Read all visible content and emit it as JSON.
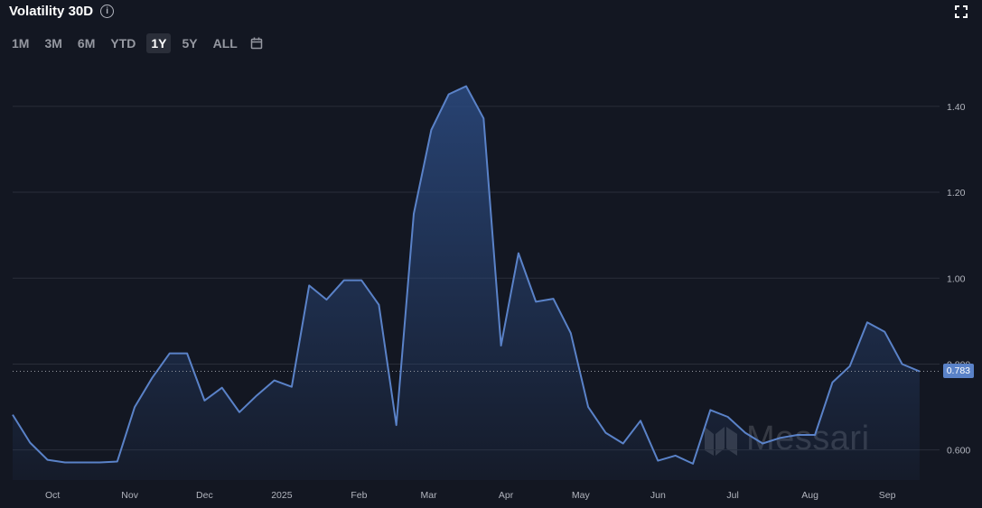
{
  "header": {
    "title": "Volatility 30D"
  },
  "ranges": [
    {
      "label": "1M",
      "active": false
    },
    {
      "label": "3M",
      "active": false
    },
    {
      "label": "6M",
      "active": false
    },
    {
      "label": "YTD",
      "active": false
    },
    {
      "label": "1Y",
      "active": true
    },
    {
      "label": "5Y",
      "active": false
    },
    {
      "label": "ALL",
      "active": false
    }
  ],
  "watermark": "Messari",
  "colors": {
    "background": "#131722",
    "line": "#5a82c8",
    "fill": "#2b4a80"
  },
  "chart_data": {
    "type": "area",
    "title": "Volatility 30D",
    "xlabel": "",
    "ylabel": "",
    "ylim": [
      0.53,
      1.49
    ],
    "grid": true,
    "y_ticks": [
      {
        "value": 0.6,
        "label": "0.600"
      },
      {
        "value": 0.8,
        "label": "0.800"
      },
      {
        "value": 1.0,
        "label": "1.00"
      },
      {
        "value": 1.2,
        "label": "1.20"
      },
      {
        "value": 1.4,
        "label": "1.40"
      }
    ],
    "x_start": "2024-09-15",
    "x_end": "2025-09-22",
    "x_ticks": [
      {
        "date": "2024-10-01",
        "label": "Oct"
      },
      {
        "date": "2024-11-01",
        "label": "Nov"
      },
      {
        "date": "2024-12-01",
        "label": "Dec"
      },
      {
        "date": "2025-01-01",
        "label": "2025"
      },
      {
        "date": "2025-02-01",
        "label": "Feb"
      },
      {
        "date": "2025-03-01",
        "label": "Mar"
      },
      {
        "date": "2025-04-01",
        "label": "Apr"
      },
      {
        "date": "2025-05-01",
        "label": "May"
      },
      {
        "date": "2025-06-01",
        "label": "Jun"
      },
      {
        "date": "2025-07-01",
        "label": "Jul"
      },
      {
        "date": "2025-08-01",
        "label": "Aug"
      },
      {
        "date": "2025-09-01",
        "label": "Sep"
      }
    ],
    "last_value": 0.783,
    "last_value_label": "0.783",
    "series": [
      {
        "points": [
          [
            "2024-09-15",
            0.682
          ],
          [
            "2024-09-22",
            0.617
          ],
          [
            "2024-09-29",
            0.577
          ],
          [
            "2024-10-06",
            0.571
          ],
          [
            "2024-10-13",
            0.571
          ],
          [
            "2024-10-20",
            0.571
          ],
          [
            "2024-10-27",
            0.573
          ],
          [
            "2024-11-03",
            0.7
          ],
          [
            "2024-11-10",
            0.768
          ],
          [
            "2024-11-17",
            0.825
          ],
          [
            "2024-11-24",
            0.825
          ],
          [
            "2024-12-01",
            0.715
          ],
          [
            "2024-12-08",
            0.745
          ],
          [
            "2024-12-15",
            0.688
          ],
          [
            "2024-12-22",
            0.727
          ],
          [
            "2024-12-29",
            0.762
          ],
          [
            "2025-01-05",
            0.747
          ],
          [
            "2025-01-12",
            0.983
          ],
          [
            "2025-01-19",
            0.95
          ],
          [
            "2025-01-26",
            0.995
          ],
          [
            "2025-02-02",
            0.995
          ],
          [
            "2025-02-09",
            0.938
          ],
          [
            "2025-02-16",
            0.658
          ],
          [
            "2025-02-23",
            1.15
          ],
          [
            "2025-03-02",
            1.345
          ],
          [
            "2025-03-09",
            1.428
          ],
          [
            "2025-03-16",
            1.447
          ],
          [
            "2025-03-23",
            1.372
          ],
          [
            "2025-03-30",
            0.843
          ],
          [
            "2025-04-06",
            1.058
          ],
          [
            "2025-04-13",
            0.945
          ],
          [
            "2025-04-20",
            0.952
          ],
          [
            "2025-04-27",
            0.872
          ],
          [
            "2025-05-04",
            0.7
          ],
          [
            "2025-05-11",
            0.64
          ],
          [
            "2025-05-18",
            0.615
          ],
          [
            "2025-05-25",
            0.668
          ],
          [
            "2025-06-01",
            0.575
          ],
          [
            "2025-06-08",
            0.587
          ],
          [
            "2025-06-15",
            0.568
          ],
          [
            "2025-06-22",
            0.693
          ],
          [
            "2025-06-29",
            0.677
          ],
          [
            "2025-07-06",
            0.64
          ],
          [
            "2025-07-13",
            0.615
          ],
          [
            "2025-07-20",
            0.628
          ],
          [
            "2025-07-27",
            0.635
          ],
          [
            "2025-08-03",
            0.635
          ],
          [
            "2025-08-10",
            0.757
          ],
          [
            "2025-08-17",
            0.795
          ],
          [
            "2025-08-24",
            0.897
          ],
          [
            "2025-08-31",
            0.875
          ],
          [
            "2025-09-07",
            0.8
          ],
          [
            "2025-09-14",
            0.783
          ]
        ]
      }
    ]
  }
}
